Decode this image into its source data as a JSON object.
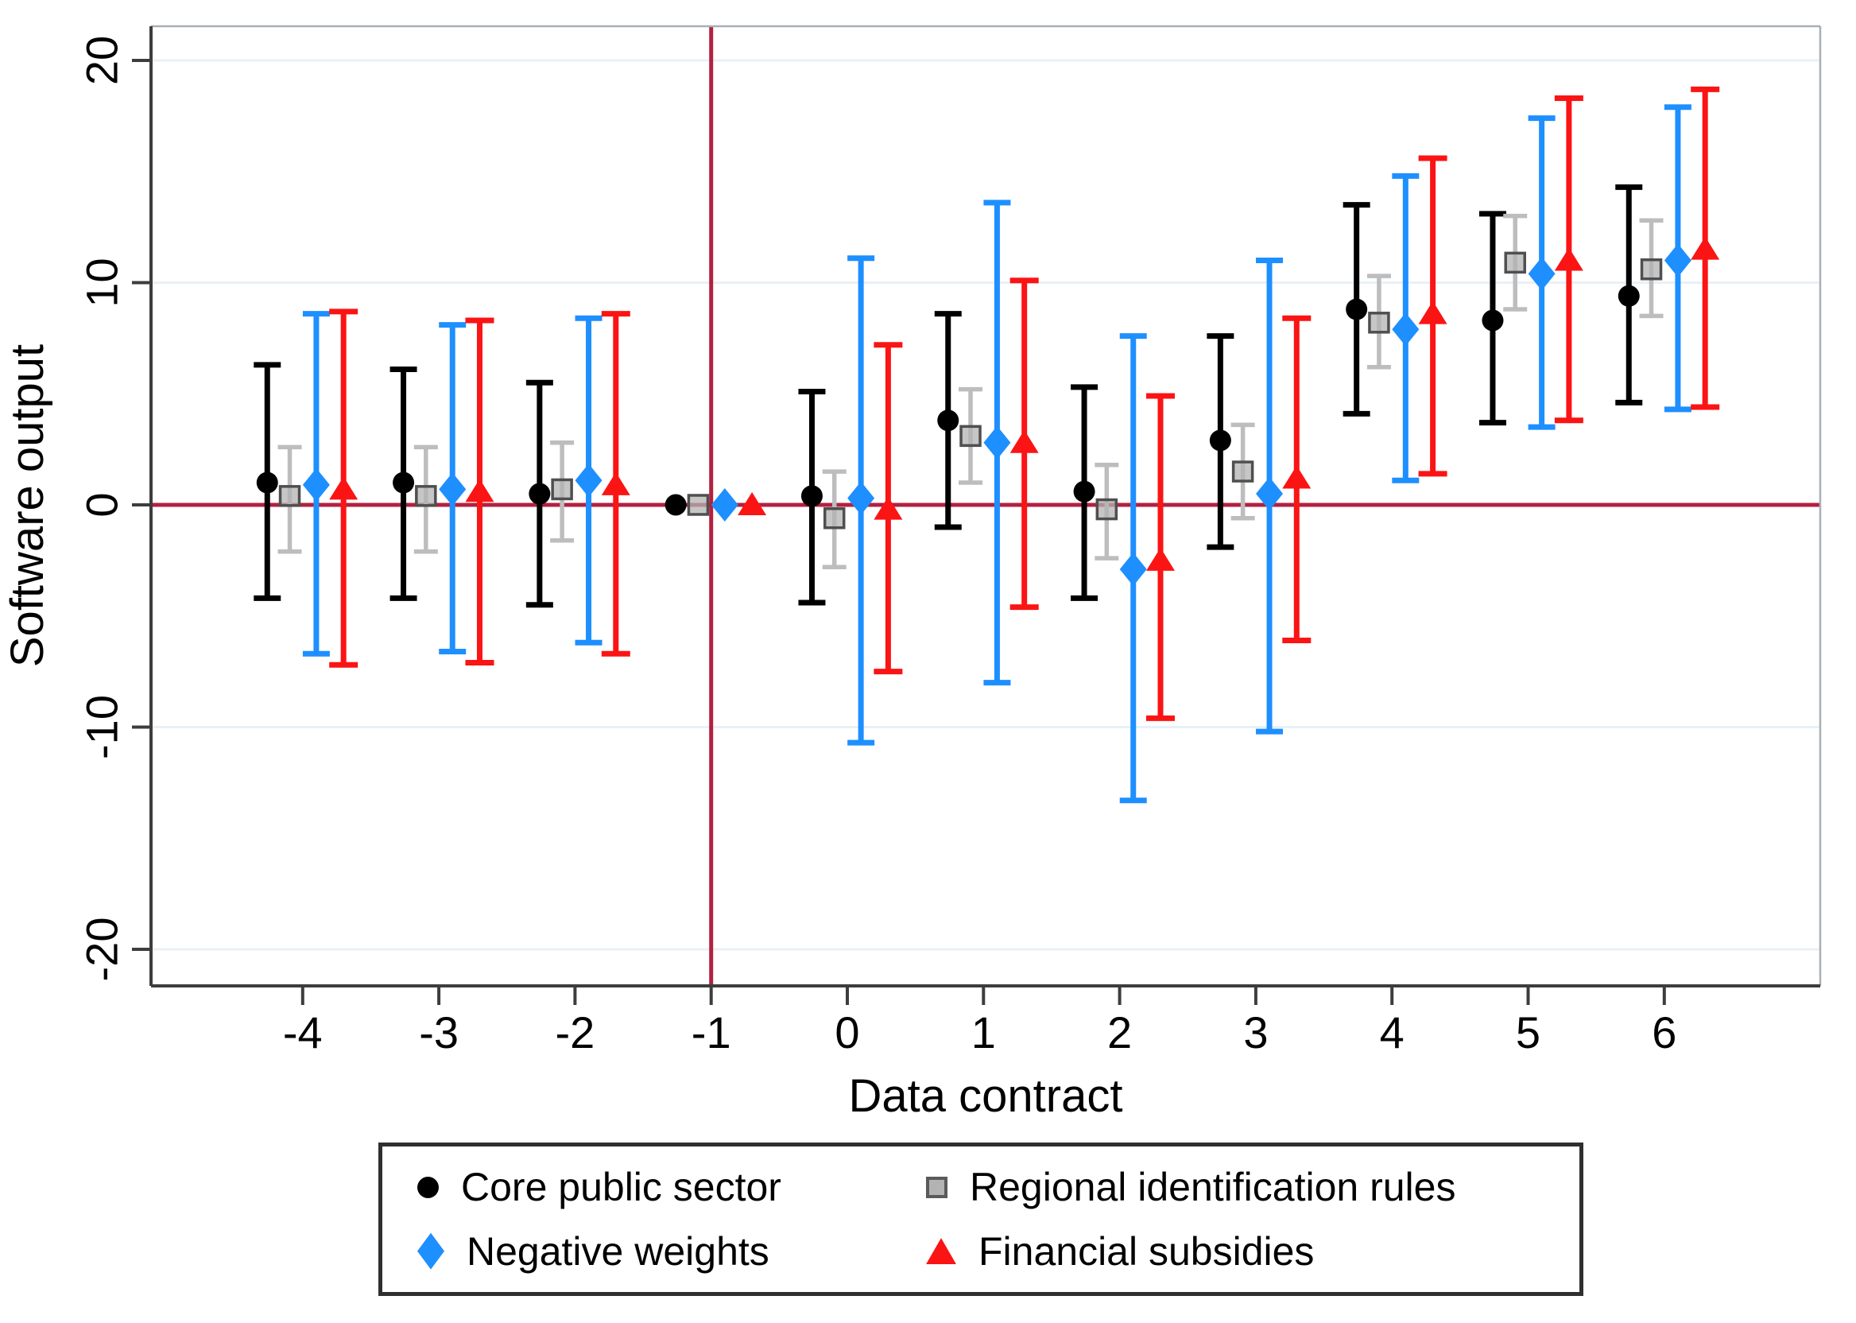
{
  "chart_data": {
    "type": "scatter",
    "subtype": "coefficient-errorbar-plot",
    "title": "",
    "xlabel": "Data contract",
    "ylabel": "Software output",
    "xlim": [
      -5.1,
      7.15
    ],
    "ylim": [
      -21.5,
      21.5
    ],
    "grid": true,
    "legend_position": "bottom",
    "x_ticks": [
      -4,
      -3,
      -2,
      -1,
      0,
      1,
      2,
      3,
      4,
      5,
      6
    ],
    "x_tick_labels": [
      "-4",
      "-3",
      "-2",
      "-1",
      "0",
      "1",
      "2",
      "3",
      "4",
      "5",
      "6"
    ],
    "y_ticks": [
      20,
      10,
      0,
      -10,
      -20
    ],
    "y_tick_labels": [
      "20",
      "10",
      "0",
      "-10",
      "-20"
    ],
    "reference_lines": {
      "horizontal_y": 0,
      "vertical_x": -1,
      "color": "#b32040"
    },
    "colors": {
      "grid": "#e8f1f7",
      "axis_dark": "#3d3d3d",
      "axis_light": "#a7b0b6",
      "black_series": "#000000",
      "gray_marker_fill": "#b3b3b3",
      "gray_marker_stroke": "#4f4f4f",
      "gray_bar": "#bdbdbd",
      "blue_series": "#1e8fff",
      "red_series": "#fb1414"
    },
    "categories": [
      -4,
      -3,
      -2,
      -1,
      0,
      1,
      2,
      3,
      4,
      5,
      6
    ],
    "series": [
      {
        "name": "Core public sector",
        "marker": "circle",
        "color": "#000000",
        "bar_color": "#000000",
        "offset": -0.26,
        "estimates": [
          1.0,
          1.0,
          0.5,
          0.0,
          0.4,
          3.8,
          0.6,
          2.9,
          8.8,
          8.3,
          9.4
        ],
        "ci_low": [
          -4.2,
          -4.2,
          -4.5,
          0.0,
          -4.4,
          -1.0,
          -4.2,
          -1.9,
          4.1,
          3.7,
          4.6
        ],
        "ci_high": [
          6.3,
          6.1,
          5.5,
          0.0,
          5.1,
          8.6,
          5.3,
          7.6,
          13.5,
          13.1,
          14.3
        ]
      },
      {
        "name": "Regional identification rules",
        "marker": "square",
        "color": "#b3b3b3",
        "bar_color": "#bdbdbd",
        "offset": -0.095,
        "estimates": [
          0.4,
          0.4,
          0.7,
          0.0,
          -0.6,
          3.1,
          -0.2,
          1.5,
          8.2,
          10.9,
          10.6
        ],
        "ci_low": [
          -2.1,
          -2.1,
          -1.6,
          0.0,
          -2.8,
          1.0,
          -2.4,
          -0.6,
          6.2,
          8.8,
          8.5
        ],
        "ci_high": [
          2.6,
          2.6,
          2.8,
          0.0,
          1.5,
          5.2,
          1.8,
          3.6,
          10.3,
          13.0,
          12.8
        ]
      },
      {
        "name": "Negative weights",
        "marker": "diamond",
        "color": "#1e8fff",
        "bar_color": "#1e8fff",
        "offset": 0.1,
        "estimates": [
          0.9,
          0.7,
          1.1,
          0.0,
          0.3,
          2.8,
          -2.9,
          0.5,
          7.9,
          10.4,
          11.0
        ],
        "ci_low": [
          -6.7,
          -6.6,
          -6.2,
          0.0,
          -10.7,
          -8.0,
          -13.3,
          -10.2,
          1.1,
          3.5,
          4.3
        ],
        "ci_high": [
          8.6,
          8.1,
          8.4,
          0.0,
          11.1,
          13.6,
          7.6,
          11.0,
          14.8,
          17.4,
          17.9
        ]
      },
      {
        "name": "Financial subsidies",
        "marker": "triangle",
        "color": "#fb1414",
        "bar_color": "#fb1414",
        "offset": 0.3,
        "estimates": [
          0.7,
          0.6,
          0.9,
          0.0,
          -0.2,
          2.8,
          -2.5,
          1.2,
          8.6,
          11.0,
          11.5
        ],
        "ci_low": [
          -7.2,
          -7.1,
          -6.7,
          0.0,
          -7.5,
          -4.6,
          -9.6,
          -6.1,
          1.4,
          3.8,
          4.4
        ],
        "ci_high": [
          8.7,
          8.3,
          8.6,
          0.0,
          7.2,
          10.1,
          4.9,
          8.4,
          15.6,
          18.3,
          18.7
        ]
      }
    ]
  }
}
